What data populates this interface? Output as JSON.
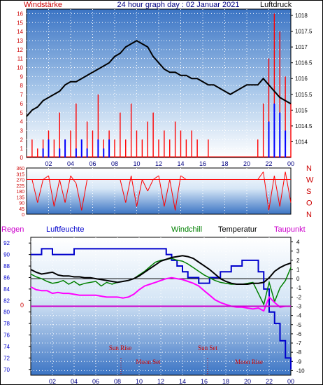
{
  "header": {
    "left_label": "Windstärke",
    "title": "24 hour graph day : 02 Januar 2021",
    "right_label": "Luftdruck"
  },
  "legend": {
    "regen": "Regen",
    "luftfeuchte": "Luftfeuchte",
    "windchill": "Windchill",
    "temperatur": "Temperatur",
    "taupunkt": "Taupunkt"
  },
  "events": {
    "sun_rise": "Sun Rise",
    "sun_set": "Sun Set",
    "moon_set": "Moon Set",
    "moon_rise": "Moon Rise"
  },
  "colors": {
    "left_axis_text": "#cc0000",
    "right_axis_text": "#000000",
    "title_text": "#000080",
    "wind": "#ff0000",
    "gust_blue": "#0000ff",
    "pressure": "#000000",
    "direction": "#ff0000",
    "humidity": "#0000cc",
    "windchill": "#008000",
    "temperature": "#000000",
    "dewpoint": "#ff00ff",
    "regen": "#cc00cc",
    "luftfeuchte": "#0000cc",
    "event_text": "#cc0000"
  },
  "chart_data": [
    {
      "type": "line",
      "name_left": "Windstärke",
      "name_right": "Luftdruck",
      "x_tick_labels": [
        "02",
        "04",
        "06",
        "08",
        "10",
        "12",
        "14",
        "16",
        "18",
        "20",
        "22",
        "00"
      ],
      "xlim": [
        0,
        24
      ],
      "left_axis": {
        "label": "Windstärke",
        "ylim": [
          0,
          16.5
        ],
        "ticks": [
          0,
          1,
          2,
          3,
          4,
          5,
          6,
          7,
          8,
          9,
          10,
          11,
          12,
          13,
          14,
          15,
          16
        ]
      },
      "right_axis": {
        "label": "Luftdruck",
        "ylim": [
          1013.5,
          1018.2
        ],
        "ticks": [
          1014,
          1014.5,
          1015,
          1015.5,
          1016,
          1016.5,
          1017,
          1017.5,
          1018
        ]
      },
      "series": [
        {
          "name": "Luftdruck",
          "x": [
            0.0,
            0.5,
            1.0,
            1.5,
            2.0,
            2.5,
            3.0,
            3.5,
            4.0,
            4.5,
            5.0,
            5.5,
            6.0,
            6.5,
            7.0,
            7.5,
            8.0,
            8.5,
            9.0,
            9.5,
            10.0,
            10.5,
            11.0,
            11.5,
            12.0,
            12.5,
            13.0,
            13.5,
            14.0,
            14.5,
            15.0,
            15.5,
            16.0,
            16.5,
            17.0,
            17.5,
            18.0,
            18.5,
            19.0,
            19.5,
            20.0,
            20.5,
            21.0,
            21.5,
            22.0,
            22.5,
            23.0,
            23.5,
            24.0
          ],
          "values": [
            1014.8,
            1015.0,
            1015.1,
            1015.3,
            1015.4,
            1015.5,
            1015.6,
            1015.8,
            1015.9,
            1015.9,
            1016.0,
            1016.1,
            1016.2,
            1016.3,
            1016.4,
            1016.5,
            1016.7,
            1016.8,
            1017.0,
            1017.1,
            1017.2,
            1017.1,
            1017.0,
            1016.7,
            1016.5,
            1016.3,
            1016.2,
            1016.2,
            1016.1,
            1016.1,
            1016.0,
            1016.0,
            1015.9,
            1015.8,
            1015.8,
            1015.7,
            1015.6,
            1015.5,
            1015.6,
            1015.7,
            1015.8,
            1015.8,
            1015.8,
            1016.0,
            1015.8,
            1015.6,
            1015.4,
            1015.3,
            1015.2
          ]
        },
        {
          "name": "Windstärke",
          "x": [
            0.0,
            0.5,
            1.0,
            1.5,
            2.0,
            2.5,
            3.0,
            3.5,
            4.0,
            4.5,
            5.0,
            5.5,
            6.0,
            6.5,
            7.0,
            7.5,
            8.0,
            8.5,
            9.0,
            9.5,
            10.0,
            10.5,
            11.0,
            11.5,
            12.0,
            12.5,
            13.0,
            13.5,
            14.0,
            14.5,
            15.0,
            15.5,
            16.0,
            16.5,
            17.0,
            17.5,
            18.0,
            18.5,
            19.0,
            19.5,
            20.0,
            20.5,
            21.0,
            21.5,
            22.0,
            22.5,
            23.0,
            23.5,
            24.0
          ],
          "values": [
            0,
            2,
            1,
            2,
            3,
            2,
            5,
            2,
            3,
            6,
            2,
            4,
            3,
            7,
            2,
            3,
            2,
            5,
            2,
            6,
            3,
            2,
            4,
            5,
            2,
            3,
            2,
            4,
            3,
            2,
            3,
            2,
            0,
            2,
            0,
            0,
            0,
            0,
            0,
            0,
            0,
            0,
            2,
            6,
            11,
            16,
            14,
            9,
            6
          ]
        },
        {
          "name": "Gust",
          "x": [
            1.5,
            2.0,
            3.0,
            3.5,
            4.5,
            5.0,
            5.5,
            6.5,
            7.0,
            7.5,
            22.0,
            22.5,
            23.0,
            23.5
          ],
          "values": [
            1,
            2,
            1,
            2,
            1,
            2,
            1,
            2,
            1,
            2,
            4,
            6,
            5,
            3
          ]
        }
      ]
    },
    {
      "type": "line",
      "name_right": "Windrichtung",
      "x_tick_labels": [],
      "xlim": [
        0,
        24
      ],
      "ylim": [
        0,
        360
      ],
      "ticks": [
        0,
        45,
        90,
        135,
        180,
        225,
        270,
        315,
        360
      ],
      "right_labels": [
        "N",
        "W",
        "S",
        "O",
        "N"
      ],
      "series": [
        {
          "name": "Windrichtung",
          "x": [
            0.0,
            0.5,
            1.0,
            1.5,
            2.0,
            2.5,
            3.0,
            3.5,
            4.0,
            4.5,
            5.0,
            5.5,
            6.0,
            6.5,
            7.0,
            7.5,
            8.0,
            8.5,
            9.0,
            9.5,
            10.0,
            10.5,
            11.0,
            11.5,
            12.0,
            12.5,
            13.0,
            13.5,
            14.0,
            14.5,
            15.0,
            15.5,
            16.0,
            16.5,
            17.0,
            17.5,
            18.0,
            18.5,
            19.0,
            19.5,
            20.0,
            20.5,
            21.0,
            21.5,
            22.0,
            22.5,
            23.0,
            23.5,
            24.0
          ],
          "values": [
            270,
            270,
            90,
            270,
            300,
            60,
            270,
            90,
            300,
            240,
            30,
            270,
            270,
            270,
            270,
            270,
            270,
            270,
            90,
            300,
            60,
            270,
            180,
            270,
            300,
            60,
            270,
            30,
            300,
            270,
            270,
            270,
            270,
            270,
            270,
            270,
            270,
            270,
            270,
            270,
            270,
            270,
            270,
            330,
            30,
            300,
            60,
            330,
            90
          ]
        }
      ]
    },
    {
      "type": "line",
      "x_tick_labels": [
        "02",
        "04",
        "06",
        "08",
        "10",
        "12",
        "14",
        "16",
        "18",
        "20",
        "22",
        "00"
      ],
      "xlim": [
        0,
        24
      ],
      "left_axis": {
        "label": "Luftfeuchte",
        "ylim": [
          69,
          93
        ],
        "ticks": [
          70,
          72,
          74,
          76,
          78,
          80,
          82,
          84,
          86,
          88,
          90,
          92
        ]
      },
      "right_axis": {
        "label": "Temperatur",
        "ylim": [
          -10.5,
          4.5
        ],
        "ticks": [
          -10,
          -9,
          -8,
          -7,
          -6,
          -5,
          -4,
          -3,
          -2,
          -1,
          0,
          1,
          2,
          3,
          4
        ]
      },
      "regen_axis_label": "0",
      "series": [
        {
          "name": "Luftfeuchte",
          "x": [
            0.0,
            0.5,
            1.0,
            1.5,
            2.0,
            2.5,
            3.0,
            3.5,
            4.0,
            4.5,
            5.0,
            5.5,
            6.0,
            6.5,
            7.0,
            7.5,
            8.0,
            8.5,
            9.0,
            9.5,
            10.0,
            10.5,
            11.0,
            11.5,
            12.0,
            12.5,
            13.0,
            13.5,
            14.0,
            14.5,
            15.0,
            15.5,
            16.0,
            16.5,
            17.0,
            17.5,
            18.0,
            18.5,
            19.0,
            19.5,
            20.0,
            20.5,
            21.0,
            21.5,
            22.0,
            22.5,
            23.0,
            23.5,
            24.0
          ],
          "values": [
            90,
            90,
            91,
            91,
            90,
            90,
            90,
            90,
            91,
            91,
            91,
            91,
            91,
            91,
            91,
            91,
            91,
            91,
            91,
            91,
            91,
            91,
            91,
            91,
            91,
            90,
            89,
            88,
            87,
            86,
            86,
            85,
            85,
            86,
            86,
            87,
            87,
            88,
            88,
            89,
            89,
            89,
            87,
            84,
            80,
            78,
            75,
            72,
            70
          ]
        },
        {
          "name": "Windchill",
          "x": [
            0.0,
            0.5,
            1.0,
            1.5,
            2.0,
            2.5,
            3.0,
            3.5,
            4.0,
            4.5,
            5.0,
            5.5,
            6.0,
            6.5,
            7.0,
            7.5,
            8.0,
            8.5,
            9.0,
            9.5,
            10.0,
            10.5,
            11.0,
            11.5,
            12.0,
            12.5,
            13.0,
            13.5,
            14.0,
            14.5,
            15.0,
            15.5,
            16.0,
            16.5,
            17.0,
            17.5,
            18.0,
            18.5,
            19.0,
            19.5,
            20.0,
            20.5,
            21.0,
            21.5,
            22.0,
            22.5,
            23.0,
            23.5,
            24.0
          ],
          "values": [
            0.5,
            0.2,
            0.0,
            -0.3,
            -0.5,
            -0.4,
            -0.2,
            -0.6,
            -0.3,
            -0.7,
            -0.5,
            -0.4,
            -0.3,
            -0.8,
            -0.4,
            -0.6,
            -0.4,
            -0.3,
            -0.2,
            0.0,
            0.4,
            0.8,
            1.3,
            1.8,
            2.0,
            2.1,
            2.2,
            2.0,
            1.9,
            1.6,
            1.2,
            0.8,
            0.4,
            0.1,
            -0.2,
            -0.4,
            -0.5,
            -0.6,
            -0.6,
            -0.6,
            -0.5,
            -0.4,
            -1.6,
            -2.8,
            -0.4,
            -2.5,
            -1.0,
            -0.2,
            1.2
          ]
        },
        {
          "name": "Temperatur",
          "x": [
            0.0,
            0.5,
            1.0,
            1.5,
            2.0,
            2.5,
            3.0,
            3.5,
            4.0,
            4.5,
            5.0,
            5.5,
            6.0,
            6.5,
            7.0,
            7.5,
            8.0,
            8.5,
            9.0,
            9.5,
            10.0,
            10.5,
            11.0,
            11.5,
            12.0,
            12.5,
            13.0,
            13.5,
            14.0,
            14.5,
            15.0,
            15.5,
            16.0,
            16.5,
            17.0,
            17.5,
            18.0,
            18.5,
            19.0,
            19.5,
            20.0,
            20.5,
            21.0,
            21.5,
            22.0,
            22.5,
            23.0,
            23.5,
            24.0
          ],
          "values": [
            1.0,
            0.7,
            0.5,
            0.6,
            0.7,
            0.4,
            0.3,
            0.3,
            0.2,
            0.2,
            0.1,
            0.1,
            0.0,
            -0.1,
            -0.2,
            -0.3,
            -0.4,
            -0.3,
            -0.2,
            0.0,
            0.3,
            0.7,
            1.1,
            1.5,
            1.9,
            2.1,
            2.3,
            2.4,
            2.5,
            2.4,
            2.2,
            1.8,
            1.4,
            1.0,
            0.5,
            0.0,
            -0.3,
            -0.5,
            -0.6,
            -0.6,
            -0.6,
            -0.5,
            -0.5,
            -0.4,
            0.1,
            0.8,
            1.2,
            1.5,
            1.7
          ]
        },
        {
          "name": "Taupunkt",
          "x": [
            0.0,
            0.5,
            1.0,
            1.5,
            2.0,
            2.5,
            3.0,
            3.5,
            4.0,
            4.5,
            5.0,
            5.5,
            6.0,
            6.5,
            7.0,
            7.5,
            8.0,
            8.5,
            9.0,
            9.5,
            10.0,
            10.5,
            11.0,
            11.5,
            12.0,
            12.5,
            13.0,
            13.5,
            14.0,
            14.5,
            15.0,
            15.5,
            16.0,
            16.5,
            17.0,
            17.5,
            18.0,
            18.5,
            19.0,
            19.5,
            20.0,
            20.5,
            21.0,
            21.5,
            22.0,
            22.5,
            23.0,
            23.5,
            24.0
          ],
          "values": [
            -0.9,
            -1.2,
            -1.3,
            -1.3,
            -1.6,
            -1.5,
            -1.6,
            -1.6,
            -1.7,
            -1.8,
            -1.8,
            -1.8,
            -1.8,
            -1.9,
            -2.0,
            -2.0,
            -2.0,
            -2.1,
            -2.0,
            -1.7,
            -1.2,
            -0.8,
            -0.6,
            -0.4,
            -0.2,
            0.0,
            0.1,
            0.0,
            -0.1,
            -0.3,
            -0.5,
            -0.8,
            -1.3,
            -1.8,
            -2.3,
            -2.6,
            -2.8,
            -3.0,
            -3.1,
            -3.1,
            -3.2,
            -3.3,
            -3.2,
            -3.5,
            -2.0,
            -2.6,
            -3.1,
            -3.0,
            -3.0
          ]
        },
        {
          "name": "Regen",
          "x": [
            0,
            24
          ],
          "values": [
            0,
            0
          ]
        }
      ]
    }
  ]
}
